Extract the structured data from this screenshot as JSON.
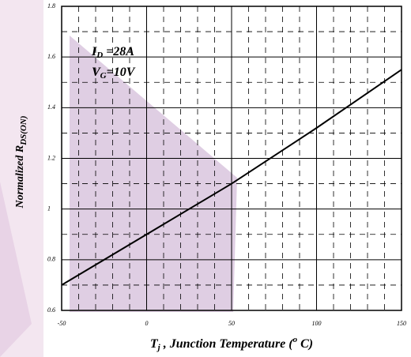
{
  "chart_data": {
    "type": "line",
    "x_label": [
      "T",
      "j",
      " , Junction Temperature (",
      "o",
      " C)"
    ],
    "y_label": [
      "Normalized R",
      "DS(ON)"
    ],
    "annotations": [
      [
        "I",
        "D",
        " =28A"
      ],
      [
        "V",
        "G",
        "=10V"
      ]
    ],
    "x": [
      -50,
      0,
      50,
      100,
      150
    ],
    "series": [
      {
        "color": "#000000",
        "values": [
          0.7,
          0.9,
          1.1,
          1.32,
          1.55
        ]
      }
    ],
    "xlim": [
      -50,
      150
    ],
    "xticks": [
      -50,
      0,
      50,
      100,
      150
    ],
    "ylim": [
      0.6,
      1.8
    ],
    "yticks": [
      0.6,
      0.8,
      1,
      1.2,
      1.4,
      1.6,
      1.8
    ],
    "grid": true
  }
}
